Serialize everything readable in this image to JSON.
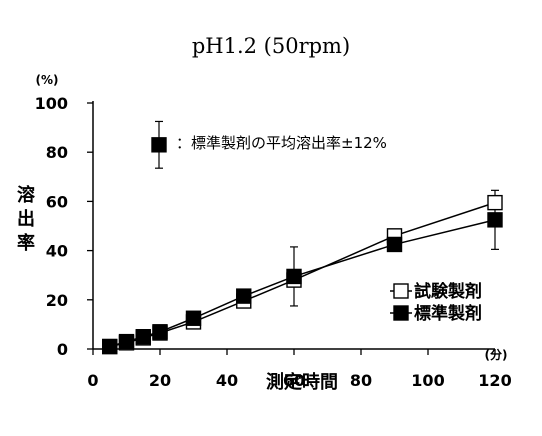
{
  "chart_data": {
    "type": "line",
    "title": "pH1.2 (50rpm)",
    "xlabel": "測定時間",
    "x_unit": "(分)",
    "ylabel": "溶出率",
    "y_unit": "(%)",
    "xlim": [
      0,
      120
    ],
    "ylim": [
      0,
      100
    ],
    "x_ticks": [
      "0",
      "20",
      "40",
      "60",
      "80",
      "100",
      "120"
    ],
    "y_ticks": [
      "0",
      "20",
      "40",
      "60",
      "80",
      "100"
    ],
    "grid": false,
    "legend_position": "right",
    "x": [
      5,
      10,
      15,
      20,
      30,
      45,
      60,
      90,
      120
    ],
    "series": [
      {
        "name": "試験製剤",
        "marker": "open-square",
        "values": [
          1,
          2.5,
          4.5,
          6.5,
          11,
          19.5,
          28,
          46,
          59.5
        ]
      },
      {
        "name": "標準製剤",
        "marker": "filled-square",
        "values": [
          1,
          3,
          5,
          7,
          12.5,
          21.5,
          29.5,
          42.5,
          52.5
        ],
        "error": [
          null,
          null,
          null,
          null,
          null,
          null,
          12,
          null,
          12
        ]
      }
    ],
    "annotation": {
      "text": "：標準製剤の平均溶出率±12%",
      "example_value": 83,
      "example_error": 9.5
    }
  },
  "colors": {
    "marker_fill": "#000000",
    "open_fill": "#ffffff",
    "line": "#000000"
  }
}
